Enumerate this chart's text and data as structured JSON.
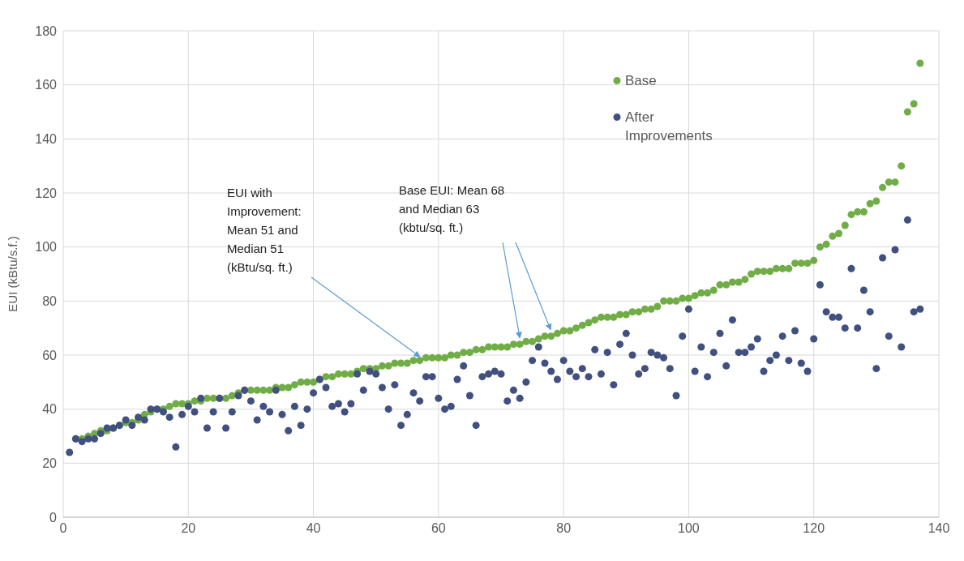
{
  "chart_data": {
    "type": "scatter",
    "ylabel": "EUI (kBtu/s.f.)",
    "x": [
      1,
      2,
      3,
      4,
      5,
      6,
      7,
      8,
      9,
      10,
      11,
      12,
      13,
      14,
      15,
      16,
      17,
      18,
      19,
      20,
      21,
      22,
      23,
      24,
      25,
      26,
      27,
      28,
      29,
      30,
      31,
      32,
      33,
      34,
      35,
      36,
      37,
      38,
      39,
      40,
      41,
      42,
      43,
      44,
      45,
      46,
      47,
      48,
      49,
      50,
      51,
      52,
      53,
      54,
      55,
      56,
      57,
      58,
      59,
      60,
      61,
      62,
      63,
      64,
      65,
      66,
      67,
      68,
      69,
      70,
      71,
      72,
      73,
      74,
      75,
      76,
      77,
      78,
      79,
      80,
      81,
      82,
      83,
      84,
      85,
      86,
      87,
      88,
      89,
      90,
      91,
      92,
      93,
      94,
      95,
      96,
      97,
      98,
      99,
      100,
      101,
      102,
      103,
      104,
      105,
      106,
      107,
      108,
      109,
      110,
      111,
      112,
      113,
      114,
      115,
      116,
      117,
      118,
      119,
      120,
      121,
      122,
      123,
      124,
      125,
      126,
      127,
      128,
      129,
      130,
      131,
      132,
      133,
      134,
      135,
      136,
      137
    ],
    "series": [
      {
        "name": "Base",
        "color": "#70ad47",
        "values": [
          null,
          29,
          29,
          30,
          31,
          32,
          32,
          33,
          34,
          35,
          35,
          36,
          38,
          39,
          40,
          40,
          41,
          42,
          42,
          42,
          43,
          43,
          44,
          44,
          44,
          44,
          45,
          46,
          47,
          47,
          47,
          47,
          47,
          48,
          48,
          48,
          49,
          50,
          50,
          50,
          51,
          52,
          52,
          53,
          53,
          53,
          54,
          55,
          55,
          55,
          56,
          56,
          57,
          57,
          57,
          58,
          58,
          59,
          59,
          59,
          59,
          60,
          60,
          61,
          61,
          62,
          62,
          63,
          63,
          63,
          63,
          64,
          64,
          65,
          65,
          66,
          67,
          67,
          68,
          69,
          69,
          70,
          71,
          72,
          73,
          74,
          74,
          74,
          75,
          75,
          76,
          76,
          77,
          77,
          78,
          80,
          80,
          80,
          81,
          81,
          82,
          83,
          83,
          84,
          86,
          86,
          87,
          87,
          88,
          90,
          91,
          91,
          91,
          92,
          92,
          92,
          94,
          94,
          94,
          95,
          100,
          101,
          104,
          105,
          108,
          112,
          113,
          113,
          116,
          117,
          122,
          124,
          124,
          130,
          150,
          153,
          168
        ]
      },
      {
        "name": "After Improvements",
        "color": "#41507f",
        "values": [
          24,
          29,
          28,
          29,
          29,
          31,
          33,
          33,
          34,
          36,
          34,
          37,
          36,
          40,
          40,
          39,
          37,
          26,
          38,
          41,
          39,
          44,
          33,
          39,
          44,
          33,
          39,
          45,
          47,
          43,
          36,
          41,
          39,
          47,
          38,
          32,
          41,
          34,
          40,
          46,
          51,
          48,
          41,
          42,
          39,
          42,
          53,
          47,
          54,
          53,
          48,
          40,
          49,
          34,
          38,
          46,
          43,
          52,
          52,
          44,
          40,
          41,
          51,
          56,
          45,
          34,
          52,
          53,
          54,
          53,
          43,
          47,
          44,
          50,
          58,
          63,
          57,
          54,
          51,
          58,
          54,
          52,
          55,
          52,
          62,
          53,
          61,
          49,
          64,
          68,
          60,
          53,
          55,
          61,
          60,
          59,
          55,
          45,
          67,
          77,
          54,
          63,
          52,
          61,
          68,
          56,
          73,
          61,
          61,
          63,
          66,
          54,
          58,
          60,
          67,
          58,
          69,
          57,
          54,
          66,
          86,
          76,
          74,
          74,
          70,
          92,
          70,
          84,
          76,
          55,
          96,
          67,
          99,
          63,
          110,
          76,
          77
        ]
      }
    ],
    "xlim": [
      0,
      140
    ],
    "xticks": [
      0,
      20,
      40,
      60,
      80,
      100,
      120,
      140
    ],
    "ylim": [
      0,
      180
    ],
    "yticks": [
      0,
      20,
      40,
      60,
      80,
      100,
      120,
      140,
      160,
      180
    ],
    "grid": true,
    "legend": "top right",
    "marker": "circle",
    "annotations": [
      {
        "text": "EUI with\nImprovement:\nMean 51 and\nMedian 51\n(kBtu/sq. ft.)",
        "x": 57,
        "y": 57
      },
      {
        "text": "Base EUI: Mean 68\nand Median 63\n(kbtu/sq. ft.)",
        "x": 73,
        "y": 64
      }
    ]
  }
}
